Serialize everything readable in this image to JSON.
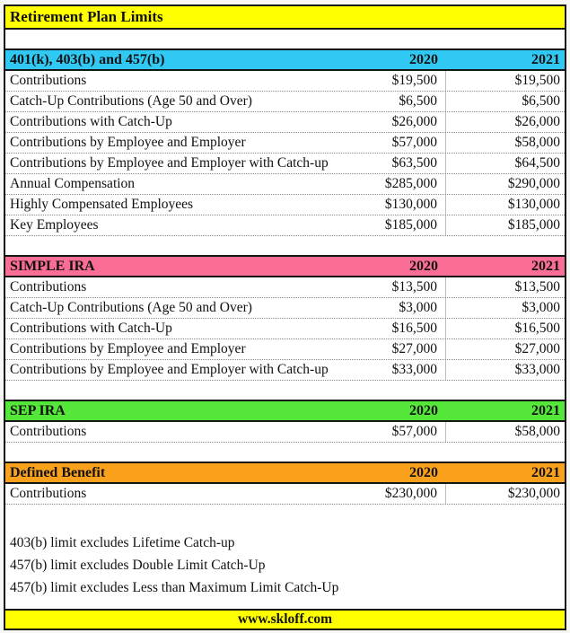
{
  "page": {
    "title": "Retirement Plan Limits",
    "footer": "www.skloff.com",
    "title_bg": "#FFFF00",
    "footer_bg": "#FFFF00",
    "border_color": "#161616"
  },
  "columns": [
    "2020",
    "2021"
  ],
  "sections": [
    {
      "name": "401(k), 403(b) and 457(b)",
      "color": "#30C9F4",
      "rows": [
        {
          "label": "Contributions",
          "y2020": "$19,500",
          "y2021": "$19,500"
        },
        {
          "label": "Catch-Up Contributions (Age 50 and Over)",
          "y2020": "$6,500",
          "y2021": "$6,500"
        },
        {
          "label": "Contributions with Catch-Up",
          "y2020": "$26,000",
          "y2021": "$26,000"
        },
        {
          "label": "Contributions by Employee and Employer",
          "y2020": "$57,000",
          "y2021": "$58,000"
        },
        {
          "label": "Contributions by Employee and Employer with Catch-up",
          "y2020": "$63,500",
          "y2021": "$64,500"
        },
        {
          "label": "Annual Compensation",
          "y2020": "$285,000",
          "y2021": "$290,000"
        },
        {
          "label": "Highly Compensated Employees",
          "y2020": "$130,000",
          "y2021": "$130,000"
        },
        {
          "label": "Key Employees",
          "y2020": "$185,000",
          "y2021": "$185,000"
        }
      ]
    },
    {
      "name": "SIMPLE IRA",
      "color": "#FA6E96",
      "rows": [
        {
          "label": "Contributions",
          "y2020": "$13,500",
          "y2021": "$13,500"
        },
        {
          "label": "Catch-Up Contributions (Age 50 and Over)",
          "y2020": "$3,000",
          "y2021": "$3,000"
        },
        {
          "label": "Contributions with Catch-Up",
          "y2020": "$16,500",
          "y2021": "$16,500"
        },
        {
          "label": "Contributions by Employee and Employer",
          "y2020": "$27,000",
          "y2021": "$27,000"
        },
        {
          "label": "Contributions by Employee and Employer with Catch-up",
          "y2020": "$33,000",
          "y2021": "$33,000"
        }
      ]
    },
    {
      "name": "SEP IRA",
      "color": "#55E63A",
      "rows": [
        {
          "label": "Contributions",
          "y2020": "$57,000",
          "y2021": "$58,000"
        }
      ]
    },
    {
      "name": "Defined Benefit",
      "color": "#F9A11B",
      "rows": [
        {
          "label": "Contributions",
          "y2020": "$230,000",
          "y2021": "$230,000"
        }
      ]
    }
  ],
  "notes": [
    "403(b) limit excludes Lifetime Catch-up",
    "457(b) limit excludes Double Limit Catch-Up",
    "457(b) limit excludes Less than Maximum Limit Catch-Up"
  ]
}
